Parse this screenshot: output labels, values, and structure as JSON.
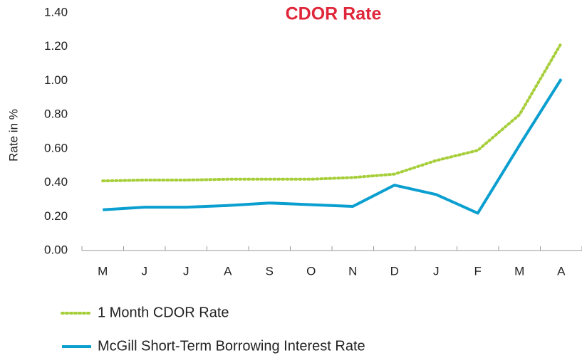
{
  "chart_data": {
    "type": "line",
    "title": "CDOR Rate",
    "y_label": "Rate in %",
    "categories": [
      "M",
      "J",
      "J",
      "A",
      "S",
      "O",
      "N",
      "D",
      "J",
      "F",
      "M",
      "A"
    ],
    "series": [
      {
        "name": "1 Month CDOR Rate",
        "color": "#a6ce39",
        "style": "dotted",
        "values": [
          0.41,
          0.415,
          0.415,
          0.42,
          0.42,
          0.42,
          0.43,
          0.45,
          0.53,
          0.59,
          0.8,
          1.22
        ]
      },
      {
        "name": "McGill Short-Term Borrowing Interest Rate",
        "color": "#0b9fd0",
        "style": "solid",
        "values": [
          0.24,
          0.255,
          0.255,
          0.265,
          0.28,
          0.27,
          0.26,
          0.385,
          0.33,
          0.22,
          0.62,
          1.01
        ]
      }
    ],
    "ylim": [
      0,
      1.4
    ],
    "yticks": [
      {
        "value": 0,
        "label": "0.00"
      },
      {
        "value": 0.2,
        "label": "0.20"
      },
      {
        "value": 0.4,
        "label": "0.40"
      },
      {
        "value": 0.6,
        "label": "0.60"
      },
      {
        "value": 0.8,
        "label": "0.80"
      },
      {
        "value": 1,
        "label": "1.00"
      },
      {
        "value": 1.2,
        "label": "1.20"
      },
      {
        "value": 1.4,
        "label": "1.40"
      }
    ],
    "grid": false
  }
}
